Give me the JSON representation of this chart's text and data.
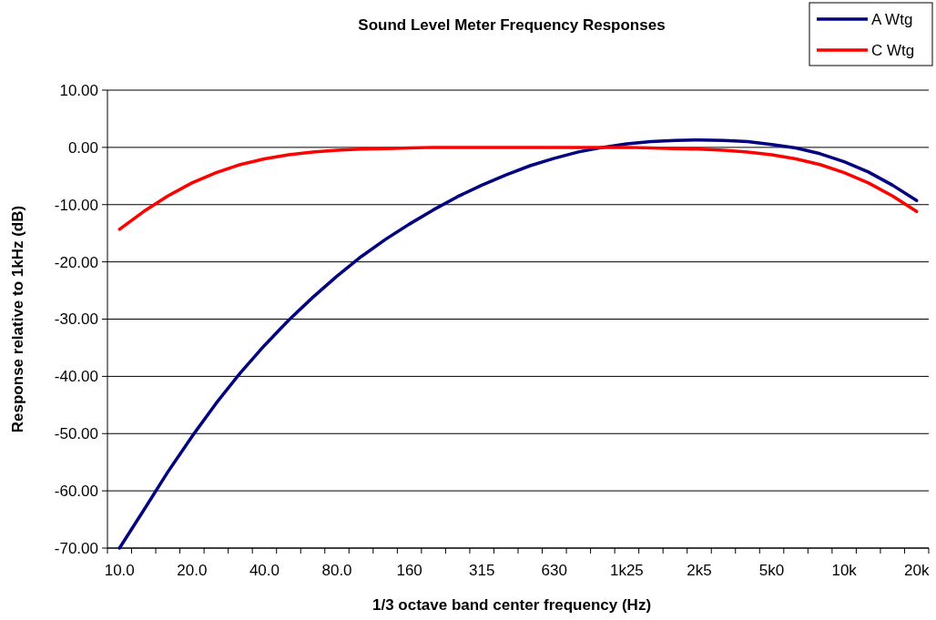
{
  "chart_data": {
    "type": "line",
    "title": "Sound Level Meter Frequency Responses",
    "xlabel": "1/3 octave band center frequency (Hz)",
    "ylabel": "Response relative to 1kHz (dB)",
    "categories": [
      "10.0",
      null,
      null,
      "20.0",
      null,
      null,
      "40.0",
      null,
      null,
      "80.0",
      null,
      null,
      "160",
      null,
      null,
      "315",
      null,
      null,
      "630",
      null,
      null,
      "1k25",
      null,
      null,
      "2k5",
      null,
      null,
      "5k0",
      null,
      null,
      "10k",
      null,
      null,
      "20k"
    ],
    "series": [
      {
        "name": "A Wtg",
        "color": "#000080",
        "values": [
          -70.0,
          -63.4,
          -56.7,
          -50.5,
          -44.7,
          -39.4,
          -34.6,
          -30.2,
          -26.2,
          -22.5,
          -19.1,
          -16.1,
          -13.4,
          -10.9,
          -8.6,
          -6.6,
          -4.8,
          -3.2,
          -1.9,
          -0.8,
          0,
          0.6,
          1.0,
          1.2,
          1.3,
          1.2,
          1.0,
          0.5,
          -0.1,
          -1.1,
          -2.5,
          -4.3,
          -6.6,
          -9.3
        ]
      },
      {
        "name": "C Wtg",
        "color": "#ff0000",
        "values": [
          -14.3,
          -11.2,
          -8.5,
          -6.2,
          -4.4,
          -3.0,
          -2.0,
          -1.3,
          -0.8,
          -0.5,
          -0.3,
          -0.2,
          -0.1,
          0,
          0,
          0,
          0,
          0,
          0,
          0,
          0,
          0,
          -0.1,
          -0.2,
          -0.3,
          -0.5,
          -0.8,
          -1.3,
          -2.0,
          -3.0,
          -4.4,
          -6.2,
          -8.5,
          -11.2
        ]
      }
    ],
    "ylim": [
      -70,
      10
    ],
    "yticks": [
      {
        "value": -70,
        "label": "-70.00"
      },
      {
        "value": -60,
        "label": "-60.00"
      },
      {
        "value": -50,
        "label": "-50.00"
      },
      {
        "value": -40,
        "label": "-40.00"
      },
      {
        "value": -30,
        "label": "-30.00"
      },
      {
        "value": -20,
        "label": "-20.00"
      },
      {
        "value": -10,
        "label": "-10.00"
      },
      {
        "value": 0,
        "label": "0.00"
      },
      {
        "value": 10,
        "label": "10.00"
      }
    ],
    "grid": "y",
    "legend": "top right",
    "marker": "none",
    "line_style": "solid"
  }
}
